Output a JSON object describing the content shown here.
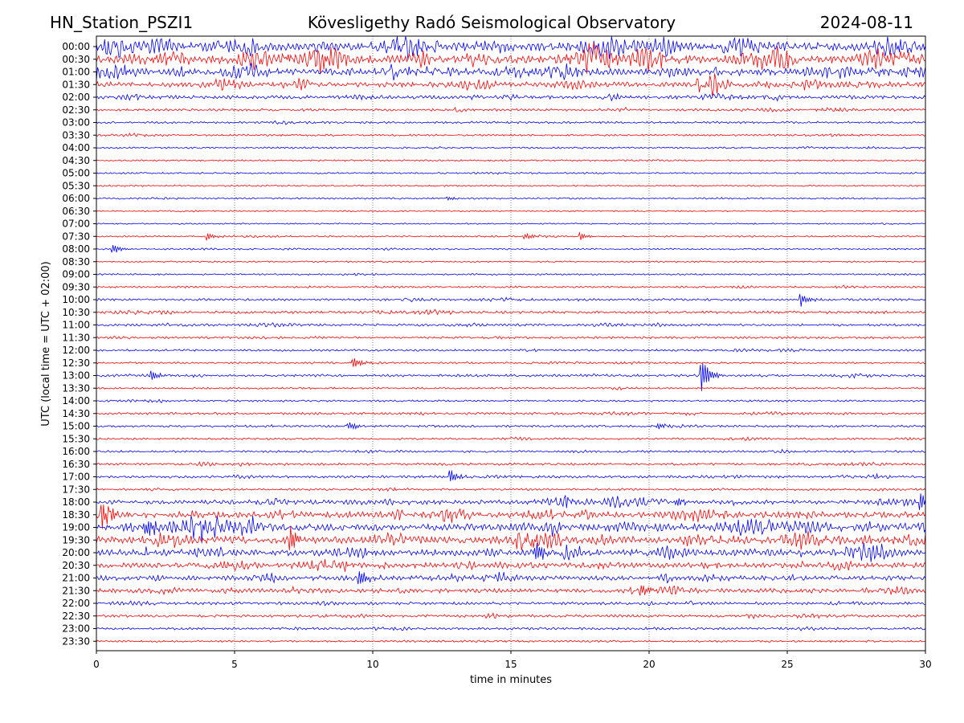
{
  "header": {
    "station": "HN_Station_PSZI1",
    "observatory": "Kövesligethy Radó Seismological Observatory",
    "date": "2024-08-11"
  },
  "chart_data": {
    "type": "line",
    "subtype": "helicorder",
    "title": "Kövesligethy Radó Seismological Observatory",
    "xlabel": "time in minutes",
    "ylabel": "UTC (local time = UTC + 02:00)",
    "xlim": [
      0,
      30
    ],
    "x_ticks": [
      0,
      5,
      10,
      15,
      20,
      25,
      30
    ],
    "x_grid": "dotted vertical lines every 5 minutes",
    "trace_colors": [
      "#0000ff",
      "#ff0000"
    ],
    "traces": [
      {
        "label": "00:00",
        "color": "#0000ff",
        "activity": 1.0
      },
      {
        "label": "00:30",
        "color": "#ff0000",
        "activity": 0.95
      },
      {
        "label": "01:00",
        "color": "#0000ff",
        "activity": 0.8
      },
      {
        "label": "01:30",
        "color": "#ff0000",
        "activity": 0.55
      },
      {
        "label": "02:00",
        "color": "#0000ff",
        "activity": 0.35
      },
      {
        "label": "02:30",
        "color": "#ff0000",
        "activity": 0.2
      },
      {
        "label": "03:00",
        "color": "#0000ff",
        "activity": 0.15
      },
      {
        "label": "03:30",
        "color": "#ff0000",
        "activity": 0.12
      },
      {
        "label": "04:00",
        "color": "#0000ff",
        "activity": 0.1
      },
      {
        "label": "04:30",
        "color": "#ff0000",
        "activity": 0.08
      },
      {
        "label": "05:00",
        "color": "#0000ff",
        "activity": 0.08
      },
      {
        "label": "05:30",
        "color": "#ff0000",
        "activity": 0.07
      },
      {
        "label": "06:00",
        "color": "#0000ff",
        "activity": 0.08
      },
      {
        "label": "06:30",
        "color": "#ff0000",
        "activity": 0.05
      },
      {
        "label": "07:00",
        "color": "#0000ff",
        "activity": 0.05
      },
      {
        "label": "07:30",
        "color": "#ff0000",
        "activity": 0.08
      },
      {
        "label": "08:00",
        "color": "#0000ff",
        "activity": 0.08
      },
      {
        "label": "08:30",
        "color": "#ff0000",
        "activity": 0.05
      },
      {
        "label": "09:00",
        "color": "#0000ff",
        "activity": 0.08
      },
      {
        "label": "09:30",
        "color": "#ff0000",
        "activity": 0.12
      },
      {
        "label": "10:00",
        "color": "#0000ff",
        "activity": 0.18
      },
      {
        "label": "10:30",
        "color": "#ff0000",
        "activity": 0.22
      },
      {
        "label": "11:00",
        "color": "#0000ff",
        "activity": 0.18
      },
      {
        "label": "11:30",
        "color": "#ff0000",
        "activity": 0.15
      },
      {
        "label": "12:00",
        "color": "#0000ff",
        "activity": 0.15
      },
      {
        "label": "12:30",
        "color": "#ff0000",
        "activity": 0.12
      },
      {
        "label": "13:00",
        "color": "#0000ff",
        "activity": 0.2
      },
      {
        "label": "13:30",
        "color": "#ff0000",
        "activity": 0.1
      },
      {
        "label": "14:00",
        "color": "#0000ff",
        "activity": 0.12
      },
      {
        "label": "14:30",
        "color": "#ff0000",
        "activity": 0.18
      },
      {
        "label": "15:00",
        "color": "#0000ff",
        "activity": 0.15
      },
      {
        "label": "15:30",
        "color": "#ff0000",
        "activity": 0.12
      },
      {
        "label": "16:00",
        "color": "#0000ff",
        "activity": 0.15
      },
      {
        "label": "16:30",
        "color": "#ff0000",
        "activity": 0.18
      },
      {
        "label": "17:00",
        "color": "#0000ff",
        "activity": 0.22
      },
      {
        "label": "17:30",
        "color": "#ff0000",
        "activity": 0.15
      },
      {
        "label": "18:00",
        "color": "#0000ff",
        "activity": 0.45
      },
      {
        "label": "18:30",
        "color": "#ff0000",
        "activity": 0.65
      },
      {
        "label": "19:00",
        "color": "#0000ff",
        "activity": 0.85
      },
      {
        "label": "19:30",
        "color": "#ff0000",
        "activity": 0.8
      },
      {
        "label": "20:00",
        "color": "#0000ff",
        "activity": 0.7
      },
      {
        "label": "20:30",
        "color": "#ff0000",
        "activity": 0.55
      },
      {
        "label": "21:00",
        "color": "#0000ff",
        "activity": 0.5
      },
      {
        "label": "21:30",
        "color": "#ff0000",
        "activity": 0.45
      },
      {
        "label": "22:00",
        "color": "#0000ff",
        "activity": 0.25
      },
      {
        "label": "22:30",
        "color": "#ff0000",
        "activity": 0.22
      },
      {
        "label": "23:00",
        "color": "#0000ff",
        "activity": 0.18
      },
      {
        "label": "23:30",
        "color": "#ff0000",
        "activity": 0.12
      }
    ],
    "events": [
      {
        "trace": "06:00",
        "minute": 12.7,
        "amp": 0.25
      },
      {
        "trace": "07:30",
        "minute": 4.0,
        "amp": 0.5
      },
      {
        "trace": "07:30",
        "minute": 15.5,
        "amp": 0.5
      },
      {
        "trace": "07:30",
        "minute": 17.5,
        "amp": 0.5
      },
      {
        "trace": "08:00",
        "minute": 0.6,
        "amp": 0.6
      },
      {
        "trace": "10:00",
        "minute": 25.5,
        "amp": 0.8
      },
      {
        "trace": "12:30",
        "minute": 9.3,
        "amp": 0.8
      },
      {
        "trace": "13:00",
        "minute": 21.9,
        "amp": 2.5
      },
      {
        "trace": "13:00",
        "minute": 2.0,
        "amp": 0.7
      },
      {
        "trace": "15:00",
        "minute": 9.1,
        "amp": 0.7
      },
      {
        "trace": "15:00",
        "minute": 20.3,
        "amp": 0.4
      },
      {
        "trace": "17:00",
        "minute": 12.8,
        "amp": 0.9
      },
      {
        "trace": "18:00",
        "minute": 17.0,
        "amp": 0.6
      },
      {
        "trace": "18:00",
        "minute": 21.0,
        "amp": 0.5
      },
      {
        "trace": "18:00",
        "minute": 29.8,
        "amp": 1.2
      },
      {
        "trace": "18:30",
        "minute": 0.2,
        "amp": 2.0
      },
      {
        "trace": "19:00",
        "minute": 1.8,
        "amp": 1.6
      },
      {
        "trace": "19:30",
        "minute": 7.0,
        "amp": 2.0
      },
      {
        "trace": "20:00",
        "minute": 15.9,
        "amp": 1.5
      },
      {
        "trace": "21:00",
        "minute": 9.5,
        "amp": 1.0
      },
      {
        "trace": "21:30",
        "minute": 19.7,
        "amp": 0.9
      }
    ]
  }
}
